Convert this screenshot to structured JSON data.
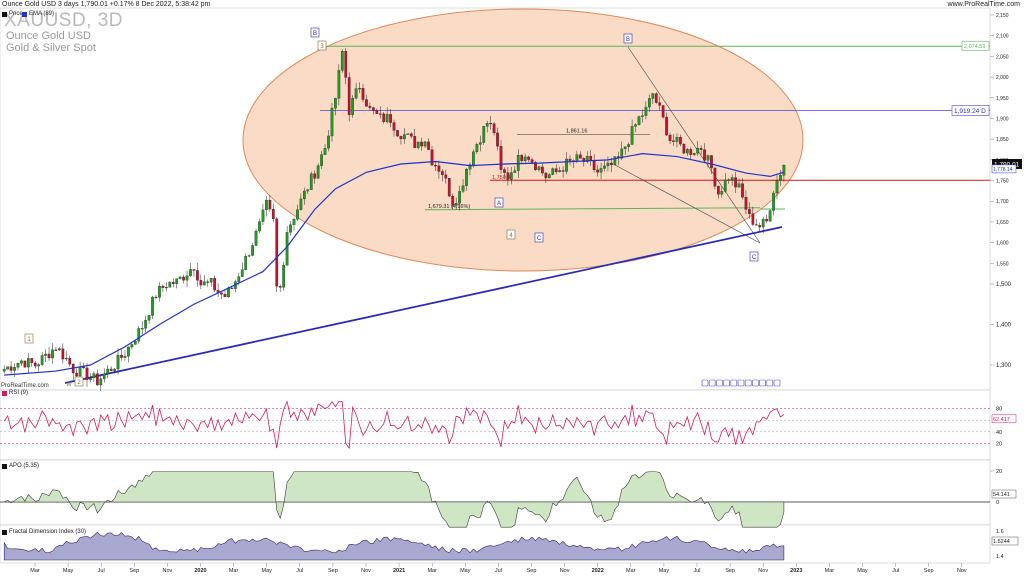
{
  "header": {
    "title": "Ounce Gold USD 3 days 1,790.01 +0.17% 8 Dec 2022, 5:38:42 pm",
    "site": "www.ProRealTime.com"
  },
  "watermark": {
    "symbol": "XAUUSD, 3D",
    "name": "Ounce Gold USD",
    "category": "Gold & Silver Spot"
  },
  "legend": {
    "price": "Price",
    "ema": "EMA (89)",
    "rsi": "RSI (9)",
    "apo": "APO (5.35)",
    "fdi": "Fractal Dimension Index (30)"
  },
  "attribution": "ProRealTime.com",
  "colors": {
    "up": "#1f9d1f",
    "down": "#c8102e",
    "ema": "#2233cc",
    "ellipse_fill": "#f6c7a8",
    "ellipse_stroke": "#e08a5a",
    "trendline": "#2a2ab8",
    "green_level": "#5db35d",
    "red_level": "#d01818",
    "rsi": "#d81b60",
    "apo_fill": "#cfe6c5",
    "apo_neg_fill": "#e5cdc8",
    "fdi_fill": "#a8a8d0",
    "price_tag": "#111111"
  },
  "icons": [
    "calendar-icon"
  ],
  "chart_data": {
    "type": "candlestick",
    "price_axis": {
      "ticks": [
        "2,150",
        "2,100",
        "2,050",
        "2,000",
        "1,950",
        "1,900",
        "1,850",
        "1,800",
        "1,750",
        "1,700",
        "1,650",
        "1,600",
        "1,550",
        "1,500",
        "1,400",
        "1,300"
      ],
      "tick_values": [
        2150,
        2100,
        2050,
        2000,
        1950,
        1900,
        1850,
        1800,
        1750,
        1700,
        1650,
        1600,
        1550,
        1500,
        1400,
        1300
      ]
    },
    "time_axis": [
      "Mar",
      "May",
      "Jul",
      "Sep",
      "Nov",
      "2020",
      "Mar",
      "May",
      "Jul",
      "Sep",
      "Nov",
      "2021",
      "Mar",
      "May",
      "Jul",
      "Sep",
      "Nov",
      "2022",
      "Mar",
      "May",
      "Jul",
      "Sep",
      "Nov",
      "2023",
      "Mar",
      "May",
      "Jul",
      "Sep",
      "Nov"
    ],
    "price_path": [
      [
        0,
        1290
      ],
      [
        5,
        1310
      ],
      [
        9,
        1300
      ],
      [
        13,
        1330
      ],
      [
        15,
        1345
      ],
      [
        18,
        1315
      ],
      [
        20,
        1290
      ],
      [
        24,
        1275
      ],
      [
        27,
        1260
      ],
      [
        30,
        1285
      ],
      [
        32,
        1300
      ],
      [
        35,
        1330
      ],
      [
        40,
        1395
      ],
      [
        44,
        1475
      ],
      [
        47,
        1500
      ],
      [
        50,
        1505
      ],
      [
        52,
        1520
      ],
      [
        55,
        1545
      ],
      [
        57,
        1500
      ],
      [
        60,
        1500
      ],
      [
        62,
        1480
      ],
      [
        64,
        1470
      ],
      [
        66,
        1490
      ],
      [
        70,
        1560
      ],
      [
        74,
        1640
      ],
      [
        76,
        1690
      ],
      [
        78,
        1650
      ],
      [
        79,
        1490
      ],
      [
        80,
        1490
      ],
      [
        82,
        1630
      ],
      [
        86,
        1700
      ],
      [
        90,
        1770
      ],
      [
        93,
        1830
      ],
      [
        96,
        1950
      ],
      [
        98,
        2060
      ],
      [
        99,
        2000
      ],
      [
        100,
        1920
      ],
      [
        103,
        1980
      ],
      [
        106,
        1920
      ],
      [
        109,
        1900
      ],
      [
        112,
        1900
      ],
      [
        114,
        1870
      ],
      [
        116,
        1860
      ],
      [
        119,
        1840
      ],
      [
        122,
        1850
      ],
      [
        124,
        1800
      ],
      [
        127,
        1770
      ],
      [
        130,
        1700
      ],
      [
        132,
        1720
      ],
      [
        134,
        1780
      ],
      [
        137,
        1840
      ],
      [
        140,
        1890
      ],
      [
        142,
        1870
      ],
      [
        144,
        1770
      ],
      [
        146,
        1760
      ],
      [
        149,
        1800
      ],
      [
        151,
        1820
      ],
      [
        154,
        1790
      ],
      [
        157,
        1760
      ],
      [
        160,
        1770
      ],
      [
        163,
        1790
      ],
      [
        166,
        1800
      ],
      [
        169,
        1795
      ],
      [
        172,
        1770
      ],
      [
        175,
        1780
      ],
      [
        178,
        1800
      ],
      [
        181,
        1850
      ],
      [
        184,
        1900
      ],
      [
        186,
        1920
      ],
      [
        188,
        1960
      ],
      [
        190,
        1920
      ],
      [
        193,
        1850
      ],
      [
        195,
        1840
      ],
      [
        198,
        1820
      ],
      [
        202,
        1830
      ],
      [
        205,
        1780
      ],
      [
        207,
        1720
      ],
      [
        210,
        1760
      ],
      [
        213,
        1730
      ],
      [
        216,
        1660
      ],
      [
        219,
        1640
      ],
      [
        221,
        1650
      ],
      [
        223,
        1730
      ],
      [
        226,
        1790
      ]
    ],
    "ema89_path": [
      [
        0,
        1275
      ],
      [
        15,
        1285
      ],
      [
        25,
        1300
      ],
      [
        35,
        1345
      ],
      [
        45,
        1400
      ],
      [
        55,
        1450
      ],
      [
        65,
        1490
      ],
      [
        75,
        1530
      ],
      [
        82,
        1590
      ],
      [
        90,
        1680
      ],
      [
        96,
        1730
      ],
      [
        105,
        1770
      ],
      [
        115,
        1790
      ],
      [
        125,
        1796
      ],
      [
        135,
        1786
      ],
      [
        145,
        1790
      ],
      [
        155,
        1792
      ],
      [
        165,
        1796
      ],
      [
        175,
        1800
      ],
      [
        185,
        1815
      ],
      [
        195,
        1808
      ],
      [
        205,
        1790
      ],
      [
        215,
        1768
      ],
      [
        222,
        1760
      ],
      [
        226,
        1770
      ]
    ],
    "ellipse": {
      "label": "",
      "shape": "ellipse"
    },
    "levels": [
      {
        "label": "2,074.59",
        "price": 2074.59,
        "color": "green"
      },
      {
        "label": "1,919.24 D",
        "price": 1919.24,
        "color": "blue"
      },
      {
        "label": "1,861.16",
        "price": 1861.16,
        "color": "grey"
      },
      {
        "label": "1,750.8",
        "price": 1750.8,
        "color": "red"
      },
      {
        "label": "1,679.31 (4.16%)",
        "price": 1679.31,
        "color": "green"
      }
    ],
    "current_price": "1,790.01",
    "ema_tag": "1,778.14",
    "wave_labels": [
      "B",
      "3",
      "B",
      "A",
      "C",
      "4",
      "C",
      "1",
      "2",
      "W"
    ],
    "indicators": {
      "rsi": {
        "levels": [
          "80",
          "60",
          "40",
          "20"
        ],
        "value_tag": "62.417"
      },
      "apo": {
        "levels": [
          "20",
          "0"
        ],
        "value_tag": "54.141"
      },
      "fdi": {
        "levels": [
          "1.6",
          "1.5244",
          "1.4"
        ],
        "value_tag": "1.5244"
      }
    }
  }
}
